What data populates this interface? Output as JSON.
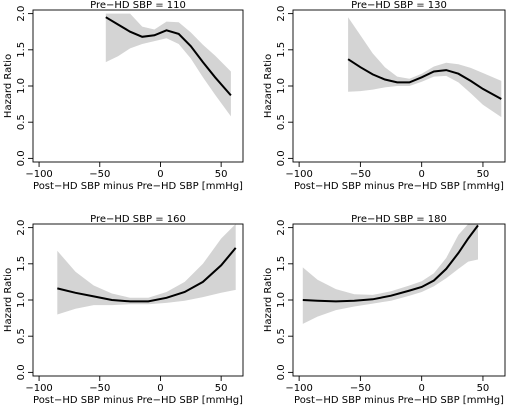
{
  "chart_data": [
    {
      "type": "line",
      "title": "Pre−HD SBP = 110",
      "xlabel": "Post−HD SBP minus Pre−HD SBP [mmHg]",
      "ylabel": "Hazard Ratio",
      "xlim": [
        -105,
        68
      ],
      "ylim": [
        -0.05,
        2.05
      ],
      "xticks": [
        -100,
        -50,
        0,
        50
      ],
      "xtick_labels": [
        "−100",
        "−50",
        "0",
        "50"
      ],
      "yticks": [
        0.0,
        0.5,
        1.0,
        1.5,
        2.0
      ],
      "ytick_labels": [
        "0.0",
        "0.5",
        "1.0",
        "1.5",
        "2.0"
      ],
      "series": [
        {
          "x": [
            -45,
            -35,
            -25,
            -15,
            -5,
            5,
            15,
            25,
            35,
            45,
            58
          ],
          "y": [
            1.95,
            1.85,
            1.75,
            1.68,
            1.7,
            1.77,
            1.72,
            1.55,
            1.33,
            1.12,
            0.87
          ],
          "lower": [
            1.33,
            1.41,
            1.52,
            1.58,
            1.62,
            1.66,
            1.58,
            1.38,
            1.12,
            0.88,
            0.58
          ],
          "upper": [
            2.0,
            2.0,
            2.0,
            1.82,
            1.78,
            1.89,
            1.88,
            1.74,
            1.57,
            1.42,
            1.2
          ]
        }
      ]
    },
    {
      "type": "line",
      "title": "Pre−HD SBP = 130",
      "xlabel": "Post−HD SBP minus Pre−HD SBP [mmHg]",
      "ylabel": "Hazard Ratio",
      "xlim": [
        -105,
        68
      ],
      "ylim": [
        -0.05,
        2.05
      ],
      "xticks": [
        -100,
        -50,
        0,
        50
      ],
      "xtick_labels": [
        "−100",
        "−50",
        "0",
        "50"
      ],
      "yticks": [
        0.0,
        0.5,
        1.0,
        1.5,
        2.0
      ],
      "ytick_labels": [
        "0.0",
        "0.5",
        "1.0",
        "1.5",
        "2.0"
      ],
      "series": [
        {
          "x": [
            -60,
            -50,
            -40,
            -30,
            -20,
            -10,
            0,
            10,
            20,
            30,
            40,
            50,
            65
          ],
          "y": [
            1.37,
            1.26,
            1.16,
            1.09,
            1.05,
            1.05,
            1.12,
            1.2,
            1.22,
            1.17,
            1.07,
            0.96,
            0.82
          ],
          "lower": [
            0.92,
            0.93,
            0.95,
            0.98,
            1.0,
            1.0,
            1.06,
            1.13,
            1.14,
            1.05,
            0.9,
            0.74,
            0.57
          ],
          "upper": [
            1.95,
            1.7,
            1.45,
            1.26,
            1.13,
            1.1,
            1.17,
            1.27,
            1.32,
            1.3,
            1.25,
            1.18,
            1.07
          ]
        }
      ]
    },
    {
      "type": "line",
      "title": "Pre−HD SBP = 160",
      "xlabel": "Post−HD SBP minus Pre−HD SBP [mmHg]",
      "ylabel": "Hazard Ratio",
      "xlim": [
        -105,
        68
      ],
      "ylim": [
        -0.05,
        2.05
      ],
      "xticks": [
        -100,
        -50,
        0,
        50
      ],
      "xtick_labels": [
        "−100",
        "−50",
        "0",
        "50"
      ],
      "yticks": [
        0.0,
        0.5,
        1.0,
        1.5,
        2.0
      ],
      "ytick_labels": [
        "0.0",
        "0.5",
        "1.0",
        "1.5",
        "2.0"
      ],
      "series": [
        {
          "x": [
            -85,
            -70,
            -55,
            -40,
            -25,
            -10,
            5,
            20,
            35,
            50,
            62
          ],
          "y": [
            1.16,
            1.1,
            1.05,
            1.0,
            0.98,
            0.98,
            1.03,
            1.11,
            1.25,
            1.48,
            1.72
          ],
          "lower": [
            0.8,
            0.88,
            0.93,
            0.93,
            0.94,
            0.94,
            0.96,
            0.99,
            1.04,
            1.1,
            1.14
          ],
          "upper": [
            1.68,
            1.39,
            1.2,
            1.09,
            1.03,
            1.03,
            1.11,
            1.25,
            1.5,
            1.85,
            2.05
          ]
        }
      ]
    },
    {
      "type": "line",
      "title": "Pre−HD SBP = 180",
      "xlabel": "Post−HD SBP minus Pre−HD SBP [mmHg]",
      "ylabel": "Hazard Ratio",
      "xlim": [
        -105,
        68
      ],
      "ylim": [
        -0.05,
        2.05
      ],
      "xticks": [
        -100,
        -50,
        0,
        50
      ],
      "xtick_labels": [
        "−100",
        "−50",
        "0",
        "50"
      ],
      "yticks": [
        0.0,
        0.5,
        1.0,
        1.5,
        2.0
      ],
      "ytick_labels": [
        "0.0",
        "0.5",
        "1.0",
        "1.5",
        "2.0"
      ],
      "series": [
        {
          "x": [
            -97,
            -85,
            -70,
            -55,
            -40,
            -25,
            -10,
            0,
            10,
            20,
            30,
            38,
            46
          ],
          "y": [
            1.0,
            0.99,
            0.98,
            0.99,
            1.01,
            1.06,
            1.13,
            1.18,
            1.27,
            1.43,
            1.65,
            1.85,
            2.03
          ],
          "lower": [
            0.67,
            0.77,
            0.86,
            0.91,
            0.95,
            0.99,
            1.06,
            1.11,
            1.19,
            1.3,
            1.43,
            1.53,
            1.56
          ],
          "upper": [
            1.45,
            1.28,
            1.15,
            1.08,
            1.07,
            1.12,
            1.2,
            1.26,
            1.37,
            1.58,
            1.9,
            2.05,
            2.05
          ]
        }
      ]
    }
  ]
}
